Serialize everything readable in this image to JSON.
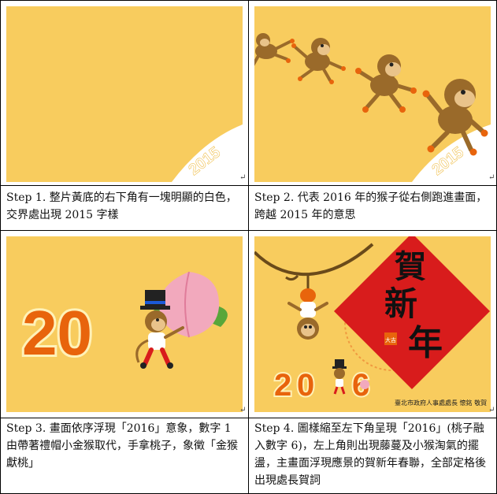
{
  "steps": [
    {
      "caption": "Step 1. 整片黃底的右下角有一塊明顯的白色，交界處出現 2015 字樣",
      "year_text": "2015"
    },
    {
      "caption": "Step 2. 代表 2016 年的猴子從右側跑進畫面，跨越 2015 年的意思",
      "year_text": "2015"
    },
    {
      "caption": "Step 3. 畫面依序浮現「2016」意象，數字 1 由帶著禮帽小金猴取代，手拿桃子，象徵「金猴獻桃」",
      "number_text": "20"
    },
    {
      "caption": "Step 4. 圖樣縮至左下角呈現「2016」(桃子融入數字 6)，左上角則出現藤蔓及小猴淘氣的擺盪，主畫面浮現應景的賀新年春聯，全部定格後出現處長賀詞",
      "greeting_chars": [
        "賀",
        "新",
        "年"
      ],
      "seal_text": "大吉",
      "year_left": "2",
      "year_mid": "0",
      "year_right": "6",
      "credit": "臺北市政府人事處處長 懷銘 敬賀"
    }
  ],
  "return_mark": "↵",
  "colors": {
    "panel_bg": "#f8cc5e",
    "orange": "#e8640c",
    "red": "#d81c1c",
    "monkey_brown": "#9a6a2a",
    "white": "#ffffff"
  }
}
